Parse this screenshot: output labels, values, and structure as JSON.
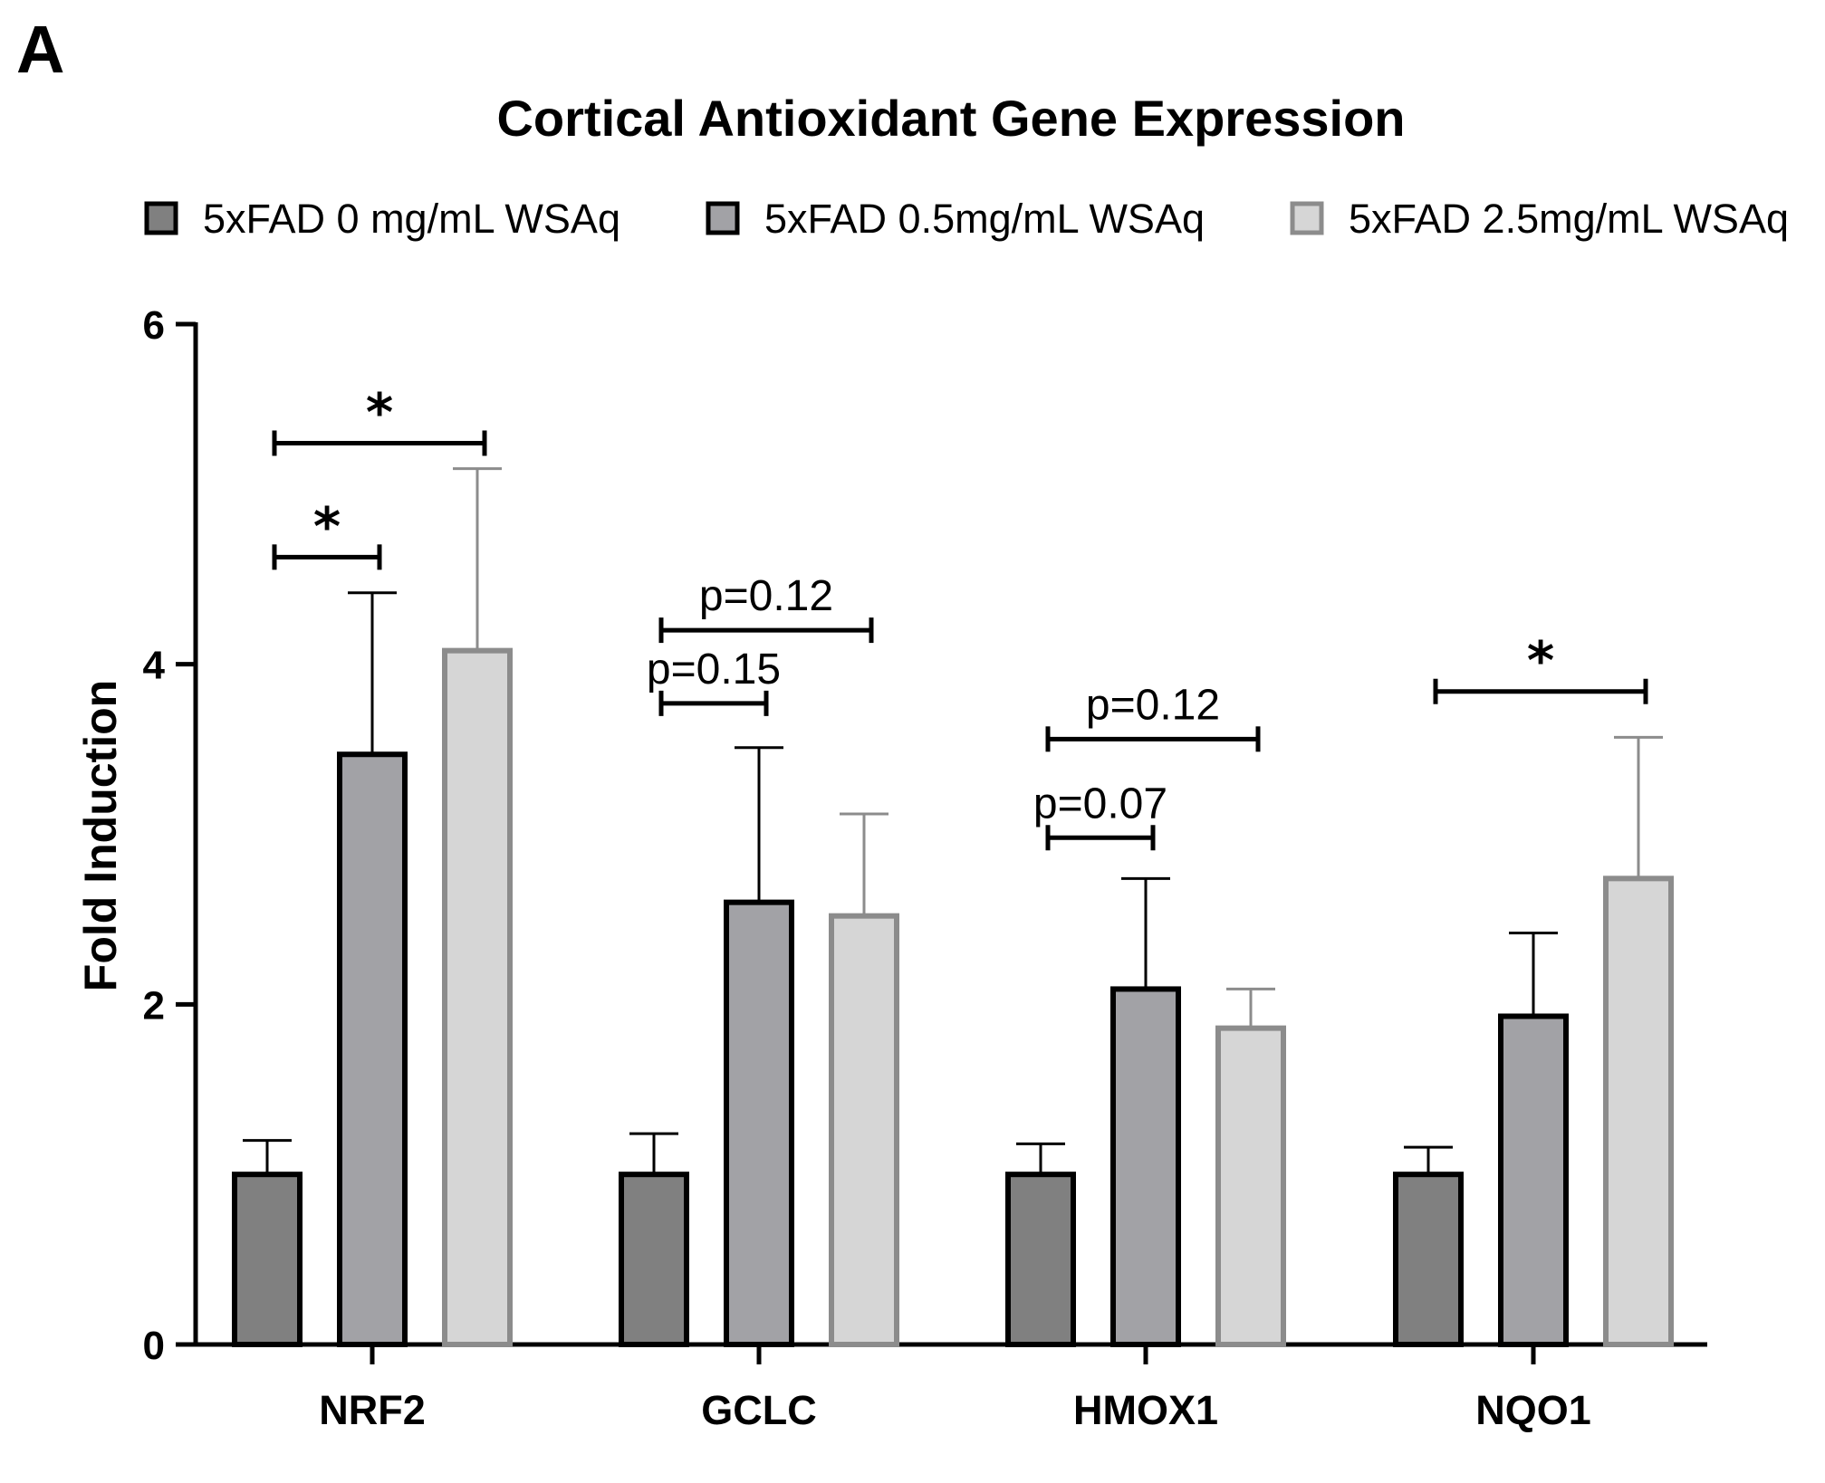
{
  "panel_label": "A",
  "chart_data": {
    "type": "bar",
    "title": "Cortical Antioxidant Gene Expression",
    "xlabel": "",
    "ylabel": "Fold  Induction",
    "ylim": [
      0,
      6
    ],
    "yticks": [
      0,
      2,
      4,
      6
    ],
    "ytick_labels": [
      "0",
      "2",
      "4",
      "6"
    ],
    "categories": [
      "NRF2",
      "GCLC",
      "HMOX1",
      "NQO1"
    ],
    "legend_position": "top",
    "series": [
      {
        "name": "5xFAD 0 mg/mL WSAq",
        "fill": "#808080",
        "stroke": "#000000",
        "values": [
          1.0,
          1.0,
          1.0,
          1.0
        ],
        "errors": [
          0.2,
          0.24,
          0.18,
          0.16
        ]
      },
      {
        "name": "5xFAD 0.5mg/mL WSAq",
        "fill": "#a2a2a6",
        "stroke": "#000000",
        "values": [
          3.47,
          2.6,
          2.09,
          1.93
        ],
        "errors": [
          0.95,
          0.91,
          0.65,
          0.49
        ]
      },
      {
        "name": "5xFAD 2.5mg/mL WSAq",
        "fill": "#d6d6d6",
        "stroke": "#8c8c8c",
        "values": [
          4.08,
          2.52,
          1.86,
          2.74
        ],
        "errors": [
          1.07,
          0.6,
          0.23,
          0.83
        ]
      }
    ],
    "annotations": [
      {
        "category": 0,
        "from": 0,
        "to": 1,
        "text": "*",
        "y": 4.63,
        "kind": "star"
      },
      {
        "category": 0,
        "from": 0,
        "to": 2,
        "text": "*",
        "y": 5.3,
        "kind": "star"
      },
      {
        "category": 1,
        "from": 0,
        "to": 1,
        "text": "p=0.15",
        "y": 3.77,
        "kind": "p"
      },
      {
        "category": 1,
        "from": 0,
        "to": 2,
        "text": "p=0.12",
        "y": 4.2,
        "kind": "p"
      },
      {
        "category": 2,
        "from": 0,
        "to": 1,
        "text": "p=0.07",
        "y": 2.98,
        "kind": "p"
      },
      {
        "category": 2,
        "from": 0,
        "to": 2,
        "text": "p=0.12",
        "y": 3.56,
        "kind": "p"
      },
      {
        "category": 3,
        "from": 0,
        "to": 2,
        "text": "*",
        "y": 3.84,
        "kind": "star"
      }
    ]
  }
}
